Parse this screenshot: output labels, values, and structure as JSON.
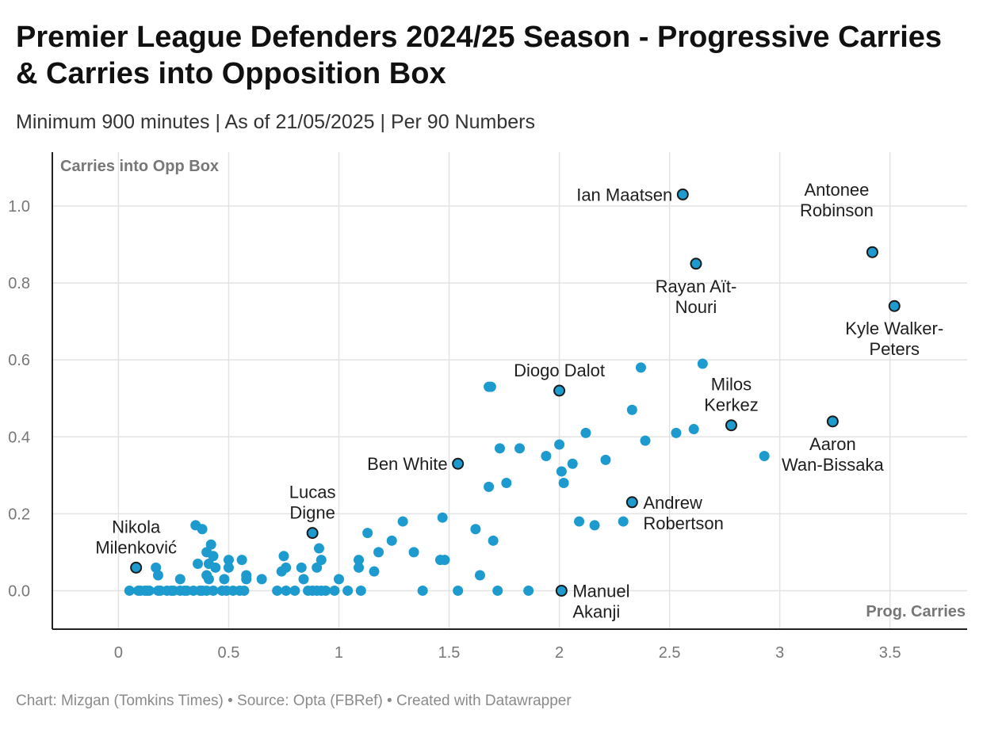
{
  "header": {
    "title": "Premier League Defenders 2024/25 Season - Progressive Carries & Carries into Opposition Box",
    "subtitle": "Minimum 900 minutes | As of 21/05/2025 | Per 90 Numbers"
  },
  "footer": {
    "credit": "Chart: Mizgan (Tomkins Times) • Source: Opta (FBRef) • Created with Datawrapper"
  },
  "colors": {
    "point": "#1d9bce",
    "point_outline": "#1a1a1a",
    "grid": "#e3e3e3",
    "axis": "#222222",
    "axis_title": "#777777"
  },
  "chart_data": {
    "type": "scatter",
    "xlabel": "Prog. Carries",
    "ylabel": "Carries into Opp Box",
    "xlim": [
      -0.3,
      3.85
    ],
    "ylim": [
      -0.1,
      1.14
    ],
    "xticks": [
      0,
      0.5,
      1,
      1.5,
      2,
      2.5,
      3,
      3.5
    ],
    "xtick_labels": [
      "0",
      "0.5",
      "1",
      "1.5",
      "2",
      "2.5",
      "3",
      "3.5"
    ],
    "yticks": [
      0,
      0.2,
      0.4,
      0.6,
      0.8,
      1.0
    ],
    "ytick_labels": [
      "0.0",
      "0.2",
      "0.4",
      "0.6",
      "0.8",
      "1.0"
    ],
    "grid": true,
    "labeled_points": [
      {
        "name": "Ian Maatsen",
        "x": 2.56,
        "y": 1.03,
        "label_lines": [
          "Ian Maatsen"
        ],
        "label_pos": "left"
      },
      {
        "name": "Antonee Robinson",
        "x": 3.42,
        "y": 0.88,
        "label_lines": [
          "Antonee",
          "Robinson"
        ],
        "label_pos": "top-left"
      },
      {
        "name": "Rayan Aït-Nouri",
        "x": 2.62,
        "y": 0.85,
        "label_lines": [
          "Rayan Aït-",
          "Nouri"
        ],
        "label_pos": "bottom"
      },
      {
        "name": "Kyle Walker-Peters",
        "x": 3.52,
        "y": 0.74,
        "label_lines": [
          "Kyle Walker-",
          "Peters"
        ],
        "label_pos": "bottom"
      },
      {
        "name": "Diogo Dalot",
        "x": 2.0,
        "y": 0.52,
        "label_lines": [
          "Diogo Dalot"
        ],
        "label_pos": "top"
      },
      {
        "name": "Milos Kerkez",
        "x": 2.78,
        "y": 0.43,
        "label_lines": [
          "Milos",
          "Kerkez"
        ],
        "label_pos": "top"
      },
      {
        "name": "Aaron Wan-Bissaka",
        "x": 3.24,
        "y": 0.44,
        "label_lines": [
          "Aaron",
          "Wan-Bissaka"
        ],
        "label_pos": "bottom"
      },
      {
        "name": "Ben White",
        "x": 1.54,
        "y": 0.33,
        "label_lines": [
          "Ben White"
        ],
        "label_pos": "left"
      },
      {
        "name": "Andrew Robertson",
        "x": 2.33,
        "y": 0.23,
        "label_lines": [
          "Andrew",
          "Robertson"
        ],
        "label_pos": "right"
      },
      {
        "name": "Lucas Digne",
        "x": 0.88,
        "y": 0.15,
        "label_lines": [
          "Lucas",
          "Digne"
        ],
        "label_pos": "top"
      },
      {
        "name": "Nikola Milenković",
        "x": 0.08,
        "y": 0.06,
        "label_lines": [
          "Nikola",
          "Milenković"
        ],
        "label_pos": "top"
      },
      {
        "name": "Manuel Akanji",
        "x": 2.01,
        "y": 0.0,
        "label_lines": [
          "Manuel",
          "Akanji"
        ],
        "label_pos": "right"
      }
    ],
    "points": [
      [
        0.05,
        0
      ],
      [
        0.09,
        0
      ],
      [
        0.1,
        0
      ],
      [
        0.12,
        0
      ],
      [
        0.13,
        0
      ],
      [
        0.14,
        0
      ],
      [
        0.18,
        0
      ],
      [
        0.19,
        0
      ],
      [
        0.22,
        0
      ],
      [
        0.24,
        0
      ],
      [
        0.25,
        0
      ],
      [
        0.28,
        0
      ],
      [
        0.3,
        0
      ],
      [
        0.31,
        0
      ],
      [
        0.34,
        0
      ],
      [
        0.37,
        0
      ],
      [
        0.38,
        0
      ],
      [
        0.4,
        0
      ],
      [
        0.43,
        0
      ],
      [
        0.47,
        0
      ],
      [
        0.49,
        0
      ],
      [
        0.52,
        0
      ],
      [
        0.55,
        0
      ],
      [
        0.57,
        0
      ],
      [
        0.72,
        0
      ],
      [
        0.76,
        0
      ],
      [
        0.8,
        0
      ],
      [
        0.86,
        0
      ],
      [
        0.88,
        0
      ],
      [
        0.9,
        0
      ],
      [
        0.92,
        0
      ],
      [
        0.94,
        0
      ],
      [
        0.98,
        0
      ],
      [
        1.04,
        0
      ],
      [
        1.1,
        0
      ],
      [
        1.38,
        0
      ],
      [
        1.54,
        0
      ],
      [
        1.72,
        0
      ],
      [
        1.86,
        0
      ],
      [
        0.17,
        0.06
      ],
      [
        0.18,
        0.04
      ],
      [
        0.28,
        0.03
      ],
      [
        0.35,
        0.17
      ],
      [
        0.38,
        0.16
      ],
      [
        0.36,
        0.07
      ],
      [
        0.4,
        0.1
      ],
      [
        0.41,
        0.07
      ],
      [
        0.42,
        0.12
      ],
      [
        0.43,
        0.09
      ],
      [
        0.4,
        0.04
      ],
      [
        0.41,
        0.03
      ],
      [
        0.44,
        0.06
      ],
      [
        0.48,
        0.03
      ],
      [
        0.5,
        0.08
      ],
      [
        0.5,
        0.06
      ],
      [
        0.56,
        0.08
      ],
      [
        0.58,
        0.04
      ],
      [
        0.58,
        0.03
      ],
      [
        0.65,
        0.03
      ],
      [
        0.74,
        0.05
      ],
      [
        0.75,
        0.09
      ],
      [
        0.76,
        0.06
      ],
      [
        0.83,
        0.06
      ],
      [
        0.84,
        0.03
      ],
      [
        0.9,
        0.06
      ],
      [
        0.91,
        0.11
      ],
      [
        0.92,
        0.08
      ],
      [
        1.0,
        0.03
      ],
      [
        1.09,
        0.08
      ],
      [
        1.09,
        0.06
      ],
      [
        1.13,
        0.15
      ],
      [
        1.16,
        0.05
      ],
      [
        1.18,
        0.1
      ],
      [
        1.24,
        0.13
      ],
      [
        1.29,
        0.18
      ],
      [
        1.34,
        0.1
      ],
      [
        1.46,
        0.08
      ],
      [
        1.47,
        0.19
      ],
      [
        1.48,
        0.08
      ],
      [
        1.62,
        0.16
      ],
      [
        1.64,
        0.04
      ],
      [
        1.7,
        0.13
      ],
      [
        1.68,
        0.53
      ],
      [
        1.69,
        0.53
      ],
      [
        1.73,
        0.37
      ],
      [
        1.68,
        0.27
      ],
      [
        1.76,
        0.28
      ],
      [
        1.82,
        0.37
      ],
      [
        1.94,
        0.35
      ],
      [
        2.0,
        0.38
      ],
      [
        2.01,
        0.31
      ],
      [
        2.02,
        0.28
      ],
      [
        2.06,
        0.33
      ],
      [
        2.09,
        0.18
      ],
      [
        2.12,
        0.41
      ],
      [
        2.16,
        0.17
      ],
      [
        2.21,
        0.34
      ],
      [
        2.29,
        0.18
      ],
      [
        2.33,
        0.47
      ],
      [
        2.37,
        0.58
      ],
      [
        2.39,
        0.39
      ],
      [
        2.53,
        0.41
      ],
      [
        2.61,
        0.42
      ],
      [
        2.65,
        0.59
      ],
      [
        2.93,
        0.35
      ]
    ]
  }
}
